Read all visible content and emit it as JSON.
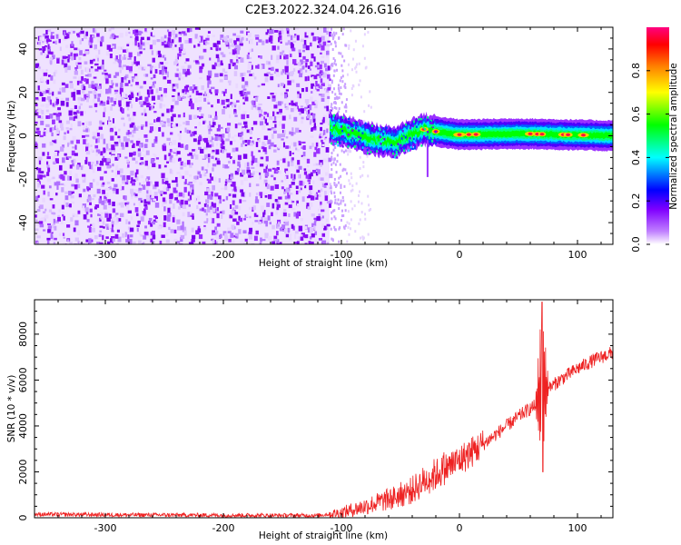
{
  "title": "C2E3.2022.324.04.26.G16",
  "chart_data": [
    {
      "type": "heatmap",
      "xlabel": "Height of straight line (km)",
      "ylabel": "Frequency (Hz)",
      "xlim": [
        -360,
        130
      ],
      "ylim": [
        -50,
        50
      ],
      "x_ticks": [
        -300,
        -200,
        -100,
        0,
        100
      ],
      "x_tick_labels": [
        "-300",
        "-200",
        "-100",
        "0",
        "100"
      ],
      "y_ticks": [
        -40,
        -20,
        0,
        20,
        40
      ],
      "y_tick_labels": [
        "-40",
        "-20",
        "0",
        "20",
        "40"
      ],
      "colorbar": {
        "label": "Normalized spectral amplitude",
        "range": [
          0,
          1
        ],
        "ticks": [
          0.0,
          0.2,
          0.4,
          0.6,
          0.8
        ],
        "tick_labels": [
          "0.0",
          "0.2",
          "0.4",
          "0.6",
          "0.8"
        ],
        "colors": [
          "#ffffff",
          "#c080ff",
          "#8000ff",
          "#0000ff",
          "#00ffff",
          "#00ff00",
          "#ffff00",
          "#ff8000",
          "#ff0000",
          "#ff0080"
        ]
      },
      "noise_region_x": [
        -360,
        -110
      ],
      "noise_fade_x": [
        -110,
        -75
      ],
      "carrier_band": [
        {
          "x": -110,
          "freq": 4
        },
        {
          "x": -90,
          "freq": 1
        },
        {
          "x": -70,
          "freq": -2
        },
        {
          "x": -55,
          "freq": -3
        },
        {
          "x": -40,
          "freq": 1
        },
        {
          "x": -30,
          "freq": 3
        },
        {
          "x": -20,
          "freq": 2
        },
        {
          "x": 0,
          "freq": 0.5
        },
        {
          "x": 50,
          "freq": 1
        },
        {
          "x": 130,
          "freq": 0
        }
      ],
      "grid": false
    },
    {
      "type": "line",
      "xlabel": "Height of straight line (km)",
      "ylabel": "SNR (10 * v/v)",
      "xlim": [
        -360,
        130
      ],
      "ylim": [
        0,
        9500
      ],
      "x_ticks": [
        -300,
        -200,
        -100,
        0,
        100
      ],
      "x_tick_labels": [
        "-300",
        "-200",
        "-100",
        "0",
        "100"
      ],
      "y_ticks": [
        0,
        2000,
        4000,
        6000,
        8000
      ],
      "y_tick_labels": [
        "0",
        "2000",
        "4000",
        "6000",
        "8000"
      ],
      "series": [
        {
          "color": "#ee2222",
          "x": [
            -360,
            -300,
            -200,
            -120,
            -100,
            -80,
            -60,
            -40,
            -30,
            -20,
            -10,
            0,
            20,
            40,
            55,
            65,
            70,
            75,
            85,
            100,
            115,
            130
          ],
          "y": [
            150,
            130,
            110,
            100,
            220,
            500,
            800,
            1200,
            1600,
            1900,
            2200,
            2500,
            3200,
            4000,
            4600,
            4900,
            5300,
            5600,
            6000,
            6500,
            6900,
            7200
          ]
        }
      ],
      "spike": {
        "x": 70,
        "max": 9400,
        "min": 2000
      },
      "grid": false
    }
  ]
}
